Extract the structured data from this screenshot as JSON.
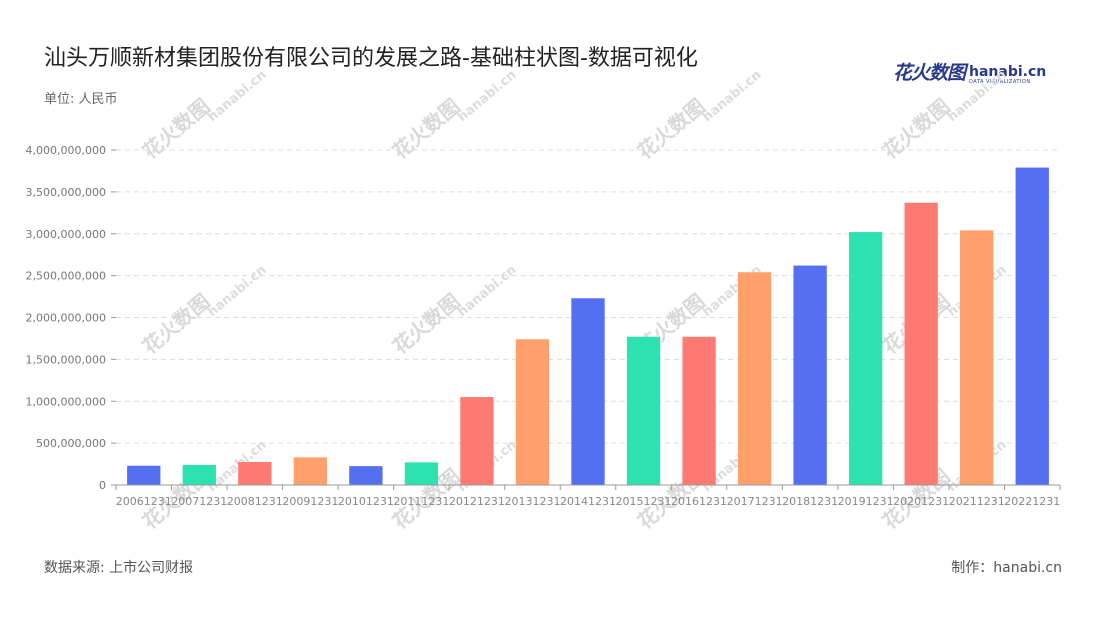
{
  "header": {
    "title": "汕头万顺新材集团股份有限公司的发展之路-基础柱状图-数据可视化",
    "unit": "单位: 人民币"
  },
  "logo": {
    "cn": "花火数图",
    "en": "hanabi.cn",
    "sub": "DATA VISUALIZATION"
  },
  "watermark": {
    "cn": "花火数图",
    "en": "hanabi.cn"
  },
  "footer": {
    "source": "数据来源: 上市公司财报",
    "maker": "制作：hanabi.cn"
  },
  "chart_data": {
    "type": "bar",
    "categories": [
      "20061231",
      "20071231",
      "20081231",
      "20091231",
      "20101231",
      "20111231",
      "20121231",
      "20131231",
      "20141231",
      "20151231",
      "20161231",
      "20171231",
      "20181231",
      "20191231",
      "20201231",
      "20211231",
      "20221231"
    ],
    "values": [
      230000000,
      240000000,
      275000000,
      330000000,
      225000000,
      270000000,
      1050000000,
      1740000000,
      2230000000,
      1770000000,
      1770000000,
      2540000000,
      2620000000,
      3020000000,
      3370000000,
      3040000000,
      3790000000
    ],
    "colors": [
      "#5470f0",
      "#2de2b0",
      "#ff7a73",
      "#ffa06d",
      "#5470f0",
      "#2de2b0",
      "#ff7a73",
      "#ffa06d",
      "#5470f0",
      "#2de2b0",
      "#ff7a73",
      "#ffa06d",
      "#5470f0",
      "#2de2b0",
      "#ff7a73",
      "#ffa06d",
      "#5470f0"
    ],
    "yticks": [
      "0",
      "500,000,000",
      "1,000,000,000",
      "1,500,000,000",
      "2,000,000,000",
      "2,500,000,000",
      "3,000,000,000",
      "3,500,000,000",
      "4,000,000,000"
    ],
    "ylim": [
      0,
      4000000000
    ],
    "grid": true
  }
}
